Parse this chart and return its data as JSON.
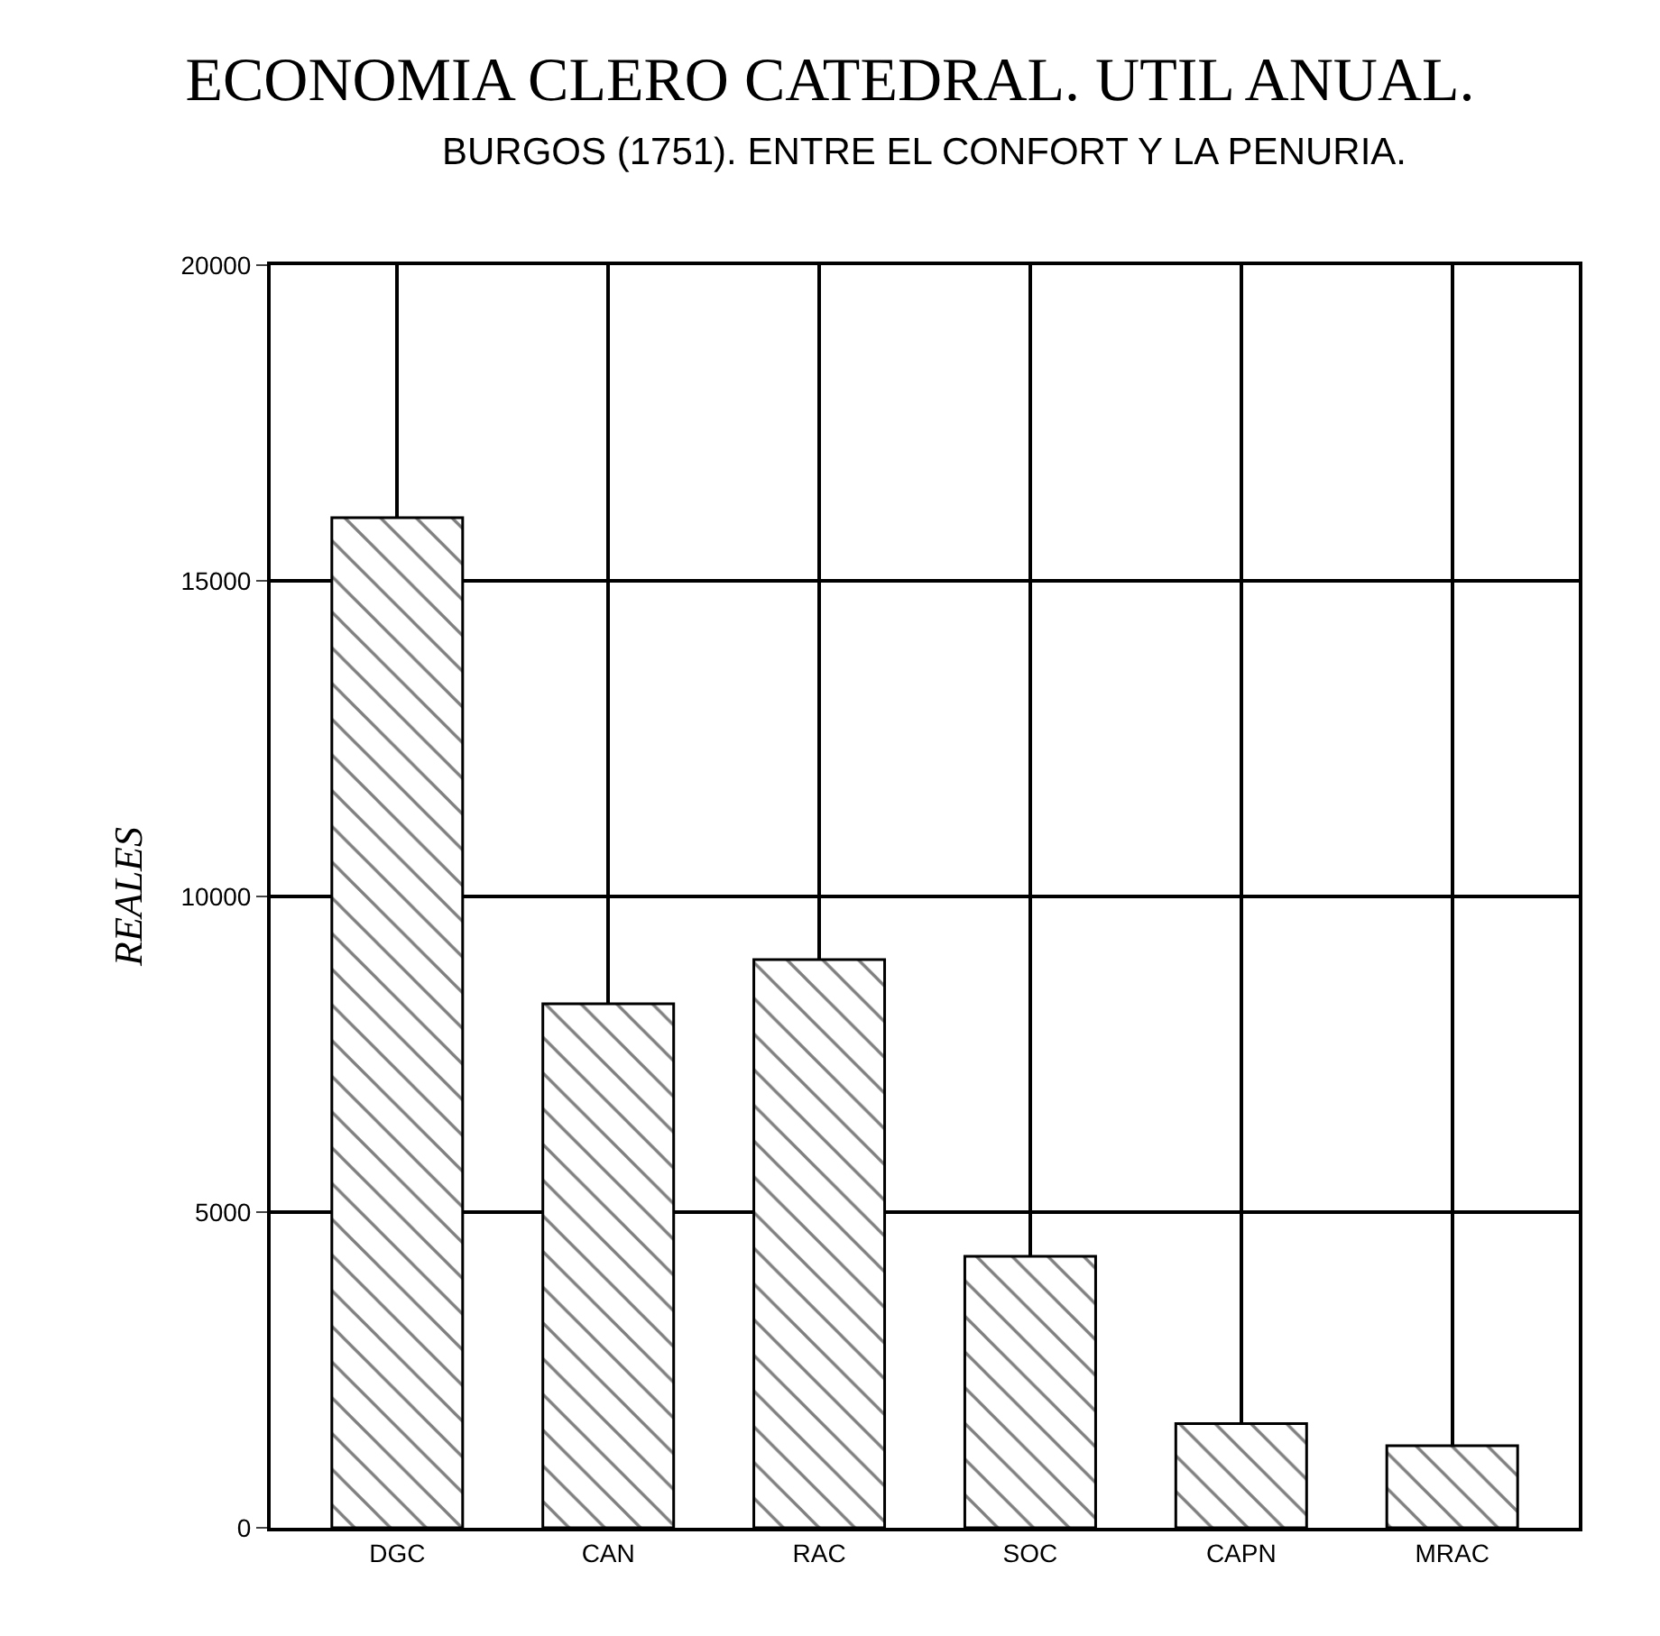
{
  "chart_data": {
    "type": "bar",
    "title": "ECONOMIA CLERO CATEDRAL. UTIL ANUAL.",
    "subtitle": "BURGOS (1751). ENTRE EL CONFORT Y LA PENURIA.",
    "ylabel": "REALES",
    "categories": [
      "DGC",
      "CAN",
      "RAC",
      "SOC",
      "CAPN",
      "MRAC"
    ],
    "values": [
      16000,
      8300,
      9000,
      4300,
      1650,
      1300
    ],
    "color": "#000000",
    "ylim": [
      0,
      20000
    ],
    "yticks": [
      0,
      5000,
      10000,
      15000,
      20000
    ],
    "grid": true
  }
}
